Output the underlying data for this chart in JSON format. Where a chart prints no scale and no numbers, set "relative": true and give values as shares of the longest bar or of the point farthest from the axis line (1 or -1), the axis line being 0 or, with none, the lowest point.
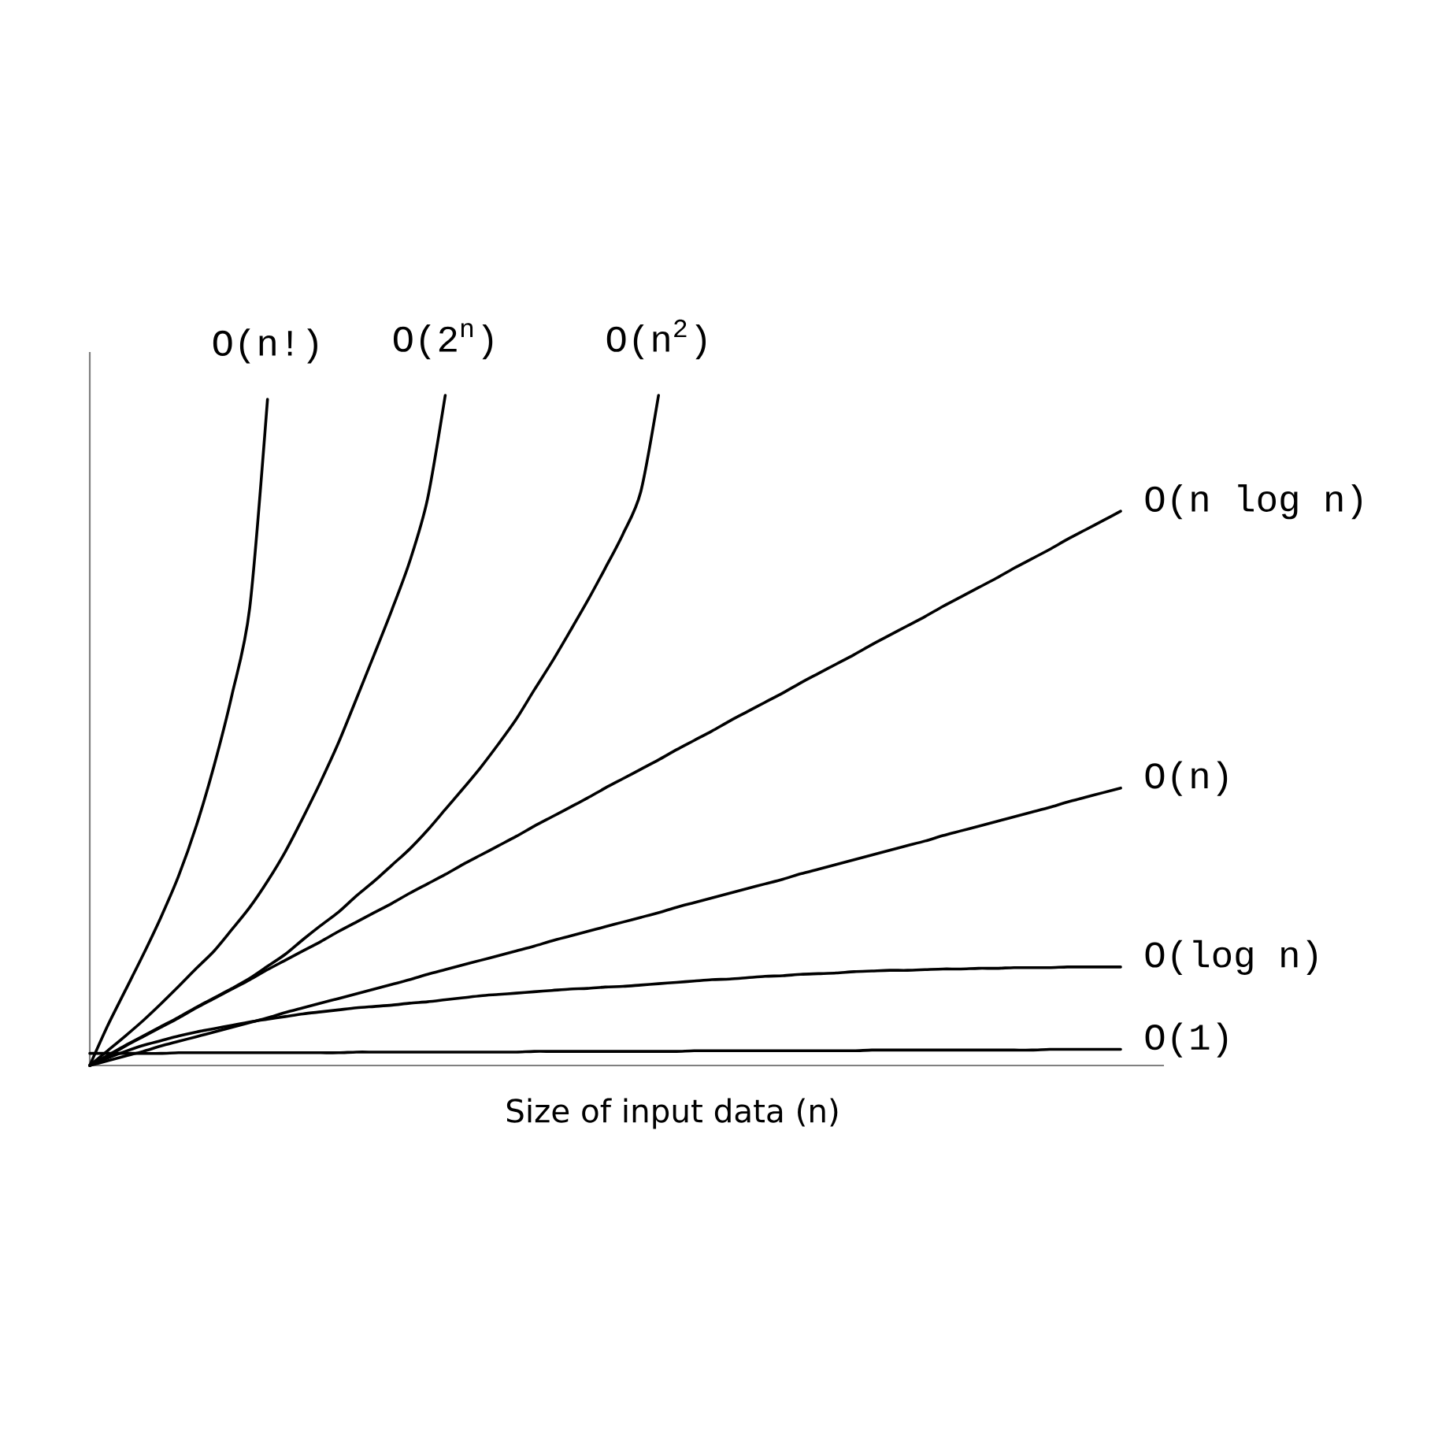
{
  "chart_data": {
    "type": "line",
    "xlabel": "Size of input data (n)",
    "relative": true,
    "marker": "none",
    "line_style": "solid",
    "categories": [
      null,
      null,
      null,
      null,
      null,
      null,
      null,
      null,
      null,
      null,
      null,
      null,
      null,
      null,
      null,
      null,
      null,
      null,
      null,
      null,
      null,
      null,
      null,
      null,
      null,
      null,
      null,
      null,
      null,
      null,
      null,
      null,
      null,
      null,
      null,
      null,
      null,
      null,
      null,
      null,
      null,
      null,
      null,
      null,
      null,
      null,
      null,
      null,
      null,
      null,
      null,
      null,
      null,
      null,
      null,
      null,
      null,
      null,
      null
    ],
    "series": [
      {
        "name": "O(n!)",
        "color": "#000000",
        "values": [
          0,
          0.059,
          0.112,
          0.165,
          0.221,
          0.283,
          0.358,
          0.448,
          0.553,
          0.683,
          0.994,
          null,
          null,
          null,
          null,
          null,
          null,
          null,
          null,
          null,
          null,
          null,
          null,
          null,
          null,
          null,
          null,
          null,
          null,
          null,
          null,
          null,
          null,
          null,
          null,
          null,
          null,
          null,
          null,
          null,
          null,
          null,
          null,
          null,
          null,
          null,
          null,
          null,
          null,
          null,
          null,
          null,
          null,
          null,
          null,
          null,
          null,
          null,
          null
        ]
      },
      {
        "name": "O(2$^{n}$)",
        "color": "#000000",
        "values": [
          0,
          0.022,
          0.044,
          0.067,
          0.092,
          0.118,
          0.145,
          0.171,
          0.203,
          0.236,
          0.275,
          0.319,
          0.37,
          0.424,
          0.482,
          0.547,
          0.613,
          0.68,
          0.752,
          0.845,
          1.0,
          null,
          null,
          null,
          null,
          null,
          null,
          null,
          null,
          null,
          null,
          null,
          null,
          null,
          null,
          null,
          null,
          null,
          null,
          null,
          null,
          null,
          null,
          null,
          null,
          null,
          null,
          null,
          null,
          null,
          null,
          null,
          null,
          null,
          null,
          null,
          null,
          null,
          null
        ]
      },
      {
        "name": "O(n$^{2}$)",
        "color": "#000000",
        "values": [
          0,
          0.015,
          0.03,
          0.044,
          0.058,
          0.072,
          0.087,
          0.101,
          0.115,
          0.13,
          0.148,
          0.166,
          0.188,
          0.209,
          0.229,
          0.253,
          0.275,
          0.299,
          0.323,
          0.351,
          0.382,
          0.413,
          0.445,
          0.48,
          0.517,
          0.56,
          0.602,
          0.647,
          0.693,
          0.742,
          0.793,
          0.856,
          1.0,
          null,
          null,
          null,
          null,
          null,
          null,
          null,
          null,
          null,
          null,
          null,
          null,
          null,
          null,
          null,
          null,
          null,
          null,
          null,
          null,
          null,
          null,
          null,
          null,
          null,
          null
        ]
      },
      {
        "name": "O(n log n)",
        "color": "#000000",
        "values": [
          0,
          0.014,
          0.029,
          0.043,
          0.057,
          0.071,
          0.086,
          0.1,
          0.114,
          0.128,
          0.143,
          0.157,
          0.171,
          0.185,
          0.2,
          0.214,
          0.228,
          0.242,
          0.257,
          0.271,
          0.285,
          0.3,
          0.314,
          0.328,
          0.342,
          0.357,
          0.371,
          0.385,
          0.399,
          0.414,
          0.428,
          0.442,
          0.456,
          0.471,
          0.485,
          0.499,
          0.514,
          0.528,
          0.542,
          0.556,
          0.571,
          0.585,
          0.599,
          0.613,
          0.628,
          0.642,
          0.656,
          0.67,
          0.685,
          0.699,
          0.713,
          0.727,
          0.742,
          0.756,
          0.77,
          0.785,
          0.799,
          0.813,
          0.827
        ]
      },
      {
        "name": "O(n)",
        "color": "#000000",
        "values": [
          0,
          0.007,
          0.014,
          0.021,
          0.029,
          0.036,
          0.043,
          0.05,
          0.057,
          0.064,
          0.071,
          0.079,
          0.086,
          0.093,
          0.1,
          0.107,
          0.114,
          0.121,
          0.128,
          0.136,
          0.143,
          0.15,
          0.157,
          0.164,
          0.171,
          0.178,
          0.186,
          0.193,
          0.2,
          0.207,
          0.214,
          0.221,
          0.228,
          0.236,
          0.243,
          0.25,
          0.257,
          0.264,
          0.271,
          0.278,
          0.286,
          0.293,
          0.3,
          0.307,
          0.314,
          0.321,
          0.328,
          0.335,
          0.343,
          0.35,
          0.357,
          0.364,
          0.371,
          0.378,
          0.385,
          0.393,
          0.4,
          0.407,
          0.414
        ]
      },
      {
        "name": "O(log n)",
        "color": "#000000",
        "values": [
          0,
          0.011,
          0.021,
          0.03,
          0.037,
          0.044,
          0.05,
          0.055,
          0.06,
          0.065,
          0.069,
          0.073,
          0.077,
          0.08,
          0.083,
          0.086,
          0.088,
          0.09,
          0.093,
          0.095,
          0.098,
          0.101,
          0.104,
          0.106,
          0.108,
          0.11,
          0.112,
          0.114,
          0.115,
          0.117,
          0.118,
          0.12,
          0.122,
          0.124,
          0.126,
          0.128,
          0.129,
          0.131,
          0.133,
          0.134,
          0.136,
          0.137,
          0.138,
          0.14,
          0.141,
          0.142,
          0.142,
          0.143,
          0.144,
          0.144,
          0.145,
          0.145,
          0.146,
          0.146,
          0.146,
          0.147,
          0.147,
          0.147,
          0.147
        ]
      },
      {
        "name": "O(1)",
        "color": "#000000",
        "values": [
          0.018,
          0.018,
          0.018,
          0.018,
          0.018,
          0.019,
          0.019,
          0.019,
          0.019,
          0.019,
          0.019,
          0.019,
          0.019,
          0.019,
          0.019,
          0.02,
          0.02,
          0.02,
          0.02,
          0.02,
          0.02,
          0.02,
          0.02,
          0.02,
          0.02,
          0.021,
          0.021,
          0.021,
          0.021,
          0.021,
          0.021,
          0.021,
          0.021,
          0.021,
          0.022,
          0.022,
          0.022,
          0.022,
          0.022,
          0.022,
          0.022,
          0.022,
          0.022,
          0.022,
          0.023,
          0.023,
          0.023,
          0.023,
          0.023,
          0.023,
          0.023,
          0.023,
          0.023,
          0.023,
          0.024,
          0.024,
          0.024,
          0.024,
          0.024
        ]
      }
    ]
  }
}
